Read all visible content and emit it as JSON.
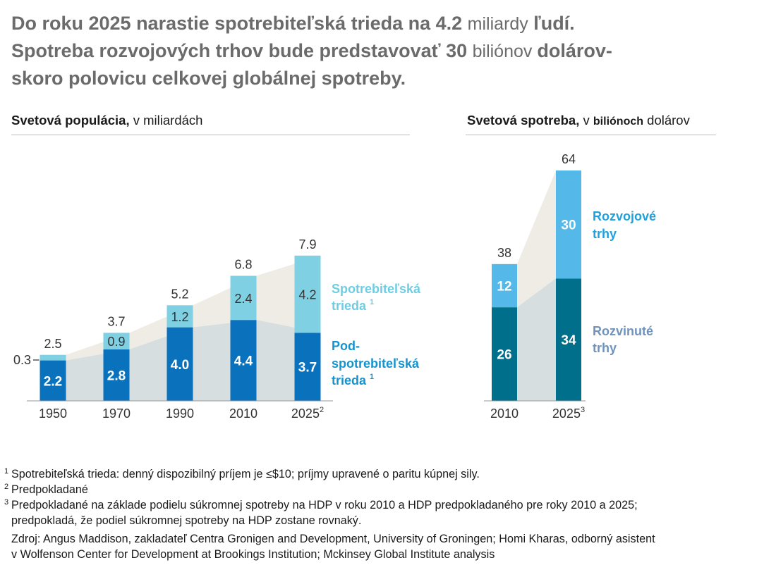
{
  "headline": {
    "line1_a": "Do roku 2025 narastie spotrebiteľská trieda na 4.2 ",
    "line1_b": "miliardy",
    "line1_c": " ľudí.",
    "line2_a": "Spotreba rozvojových trhov bude predstavovať 30 ",
    "line2_b": " biliónov ",
    "line2_c": " dolárov-",
    "line3": "skoro polovicu celkovej globálnej spotreby."
  },
  "footnotes": [
    {
      "mark": "1",
      "text": "Spotrebiteľská trieda: denný dispozibilný príjem je ≤$10; príjmy upravené o paritu kúpnej sily."
    },
    {
      "mark": "2",
      "text": "Predpokladané"
    },
    {
      "mark": "3",
      "text": "Predpokladané na základe podielu súkromnej spotreby na HDP v roku 2010 a HDP predpokladaného pre roky 2010 a 2025;\npredpokladá, že podiel súkromnej spotreby na HDP zostane rovnaký."
    }
  ],
  "source": "Zdroj: Angus Maddison, zakladateľ Centra Gronigen and Development, University of Groningen; Homi Kharas, odborný asistent\nv Wolfenson Center for Development at Brookings Institution; Mckinsey Global Institute analysis",
  "colors": {
    "under_consumer": "#0a72bd",
    "consumer": "#7fd0e2",
    "developed": "#006f8c",
    "developing": "#54b9e8",
    "area_light": "#eeece4",
    "area_dark": "#d6dee0",
    "label_consumer": "#6ecde3",
    "label_under": "#1593cf",
    "label_developing": "#20a0dc",
    "label_developed": "#6f93bd"
  },
  "chart_data": [
    {
      "type": "bar",
      "stacked": true,
      "title": "Svetová populácia,",
      "subtitle": "v miliardách",
      "categories": [
        "1950",
        "1970",
        "1990",
        "2010",
        "2025"
      ],
      "category_marks": [
        "",
        "",
        "",
        "",
        "2"
      ],
      "series": [
        {
          "name": "Pod-spotrebiteľská trieda",
          "footnote": "1",
          "values": [
            2.2,
            2.8,
            4.0,
            4.4,
            3.7
          ]
        },
        {
          "name": "Spotrebiteľská trieda",
          "footnote": "1",
          "values": [
            0.3,
            0.9,
            1.2,
            2.4,
            4.2
          ]
        }
      ],
      "totals": [
        "2.5",
        "3.7",
        "5.2",
        "6.8",
        "7.9"
      ],
      "bottom_labels": [
        "2.2",
        "2.8",
        "4.0",
        "4.4",
        "3.7"
      ],
      "top_labels": [
        "0.3",
        "0.9",
        "1.2",
        "2.4",
        "4.2"
      ],
      "ylim": [
        0,
        8
      ]
    },
    {
      "type": "bar",
      "stacked": true,
      "title": "Svetová spotreba,",
      "subtitle_a": "v",
      "subtitle_b": "biliónoch",
      "subtitle_c": "dolárov",
      "categories": [
        "2010",
        "2025"
      ],
      "category_marks": [
        "",
        "3"
      ],
      "series": [
        {
          "name": "Rozvinuté trhy",
          "values": [
            26,
            34
          ]
        },
        {
          "name": "Rozvojové trhy",
          "values": [
            12,
            30
          ]
        }
      ],
      "totals": [
        "38",
        "64"
      ],
      "bottom_labels": [
        "26",
        "34"
      ],
      "top_labels": [
        "12",
        "30"
      ],
      "ylim": [
        0,
        64
      ]
    }
  ],
  "legend": {
    "consumer_l1": "Spotrebiteľská",
    "consumer_l2": "trieda",
    "consumer_mark": "1",
    "under_l1": "Pod-",
    "under_l2": "spotrebiteľská",
    "under_l3": "trieda",
    "under_mark": "1",
    "developing_l1": "Rozvojové",
    "developing_l2": "trhy",
    "developed_l1": "Rozvinuté",
    "developed_l2": "trhy"
  }
}
